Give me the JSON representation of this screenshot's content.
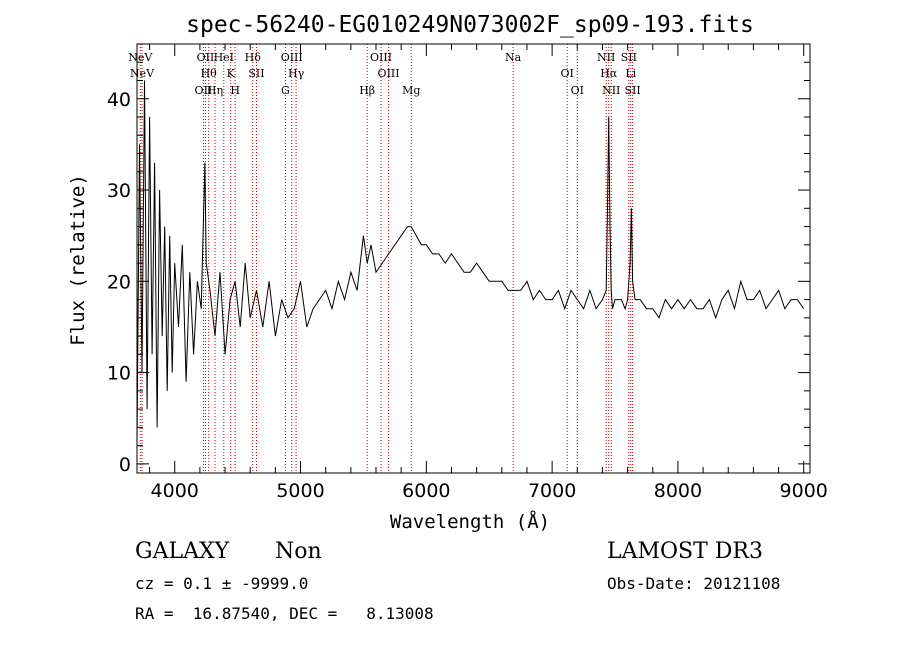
{
  "chart_data": {
    "type": "line",
    "title": "spec-56240-EG010249N073002F_sp09-193.fits",
    "xlabel": "Wavelength (Å)",
    "ylabel": "Flux (relative)",
    "xlim": [
      3700,
      9050
    ],
    "ylim": [
      -1,
      46
    ],
    "xticks": [
      4000,
      5000,
      6000,
      7000,
      8000,
      9000
    ],
    "yticks": [
      0,
      10,
      20,
      30,
      40
    ],
    "grid": false,
    "color": "#000000",
    "line_color": "#c00000",
    "series": [
      {
        "x": [
          3700,
          3720,
          3740,
          3760,
          3780,
          3800,
          3820,
          3840,
          3860,
          3880,
          3900,
          3920,
          3940,
          3960,
          3980,
          4000,
          4030,
          4060,
          4090,
          4120,
          4150,
          4180,
          4210,
          4240,
          4250,
          4280,
          4320,
          4360,
          4400,
          4440,
          4480,
          4520,
          4560,
          4600,
          4650,
          4700,
          4750,
          4800,
          4850,
          4900,
          4950,
          5000,
          5050,
          5100,
          5150,
          5200,
          5250,
          5300,
          5350,
          5400,
          5450,
          5500,
          5530,
          5560,
          5600,
          5650,
          5700,
          5750,
          5800,
          5850,
          5880,
          5920,
          5960,
          6000,
          6050,
          6100,
          6150,
          6200,
          6250,
          6300,
          6350,
          6400,
          6450,
          6500,
          6550,
          6600,
          6650,
          6700,
          6750,
          6800,
          6850,
          6900,
          6950,
          7000,
          7050,
          7100,
          7150,
          7200,
          7250,
          7300,
          7350,
          7400,
          7430,
          7440,
          7450,
          7460,
          7470,
          7480,
          7500,
          7550,
          7580,
          7600,
          7620,
          7630,
          7640,
          7660,
          7700,
          7750,
          7800,
          7850,
          7900,
          7950,
          8000,
          8050,
          8100,
          8150,
          8200,
          8250,
          8300,
          8350,
          8400,
          8450,
          8500,
          8550,
          8600,
          8650,
          8700,
          8750,
          8800,
          8850,
          8900,
          8950,
          9000
        ],
        "values": [
          2,
          35,
          10,
          42,
          6,
          38,
          12,
          33,
          4,
          30,
          14,
          26,
          8,
          25,
          10,
          22,
          15,
          24,
          9,
          21,
          12,
          20,
          17,
          33,
          22,
          19,
          14,
          21,
          12,
          18,
          20,
          15,
          22,
          16,
          19,
          15,
          20,
          14,
          18,
          16,
          17,
          20,
          15,
          17,
          18,
          19,
          17,
          20,
          18,
          21,
          19,
          25,
          22,
          24,
          21,
          22,
          23,
          24,
          25,
          26,
          26,
          25,
          24,
          24,
          23,
          23,
          22,
          23,
          22,
          21,
          21,
          22,
          21,
          20,
          20,
          20,
          19,
          19,
          19,
          20,
          18,
          19,
          18,
          18,
          19,
          17,
          19,
          18,
          17,
          19,
          17,
          18,
          19,
          28,
          38,
          26,
          19,
          17,
          18,
          18,
          17,
          18,
          22,
          28,
          20,
          18,
          18,
          17,
          17,
          16,
          18,
          17,
          18,
          17,
          18,
          17,
          17,
          18,
          16,
          18,
          19,
          17,
          20,
          18,
          18,
          19,
          17,
          18,
          19,
          17,
          18,
          18,
          17
        ]
      }
    ],
    "emission_lines": [
      {
        "label": "NeV",
        "wavelength": 3726
      },
      {
        "label": "NeV",
        "wavelength": 3740
      },
      {
        "label": "OII",
        "wavelength": 4228
      },
      {
        "label": "OII",
        "wavelength": 4244
      },
      {
        "label": "Hθ",
        "wavelength": 4270
      },
      {
        "label": "Hη",
        "wavelength": 4320
      },
      {
        "label": "HeI",
        "wavelength": 4390
      },
      {
        "label": "K",
        "wavelength": 4445
      },
      {
        "label": "H",
        "wavelength": 4480
      },
      {
        "label": "Hδ",
        "wavelength": 4620
      },
      {
        "label": "SII",
        "wavelength": 4650
      },
      {
        "label": "G",
        "wavelength": 4880
      },
      {
        "label": "OIII",
        "wavelength": 4930
      },
      {
        "label": "Hγ",
        "wavelength": 4965
      },
      {
        "label": "Hβ",
        "wavelength": 5530
      },
      {
        "label": "OIII",
        "wavelength": 5640
      },
      {
        "label": "OIII",
        "wavelength": 5700
      },
      {
        "label": "Mg",
        "wavelength": 5880
      },
      {
        "label": "Na",
        "wavelength": 6690
      },
      {
        "label": "OI",
        "wavelength": 7120
      },
      {
        "label": "OI",
        "wavelength": 7200
      },
      {
        "label": "NII",
        "wavelength": 7430
      },
      {
        "label": "Hα",
        "wavelength": 7450
      },
      {
        "label": "NII",
        "wavelength": 7470
      },
      {
        "label": "SII",
        "wavelength": 7610
      },
      {
        "label": "Li",
        "wavelength": 7625
      },
      {
        "label": "SII",
        "wavelength": 7640
      }
    ]
  },
  "info": {
    "class": "GALAXY",
    "subclass": "Non",
    "survey": "LAMOST DR3",
    "cz": "cz = 0.1 ± -9999.0",
    "obs_date": "Obs-Date: 20121108",
    "radec": "RA =  16.87540, DEC =   8.13008"
  }
}
